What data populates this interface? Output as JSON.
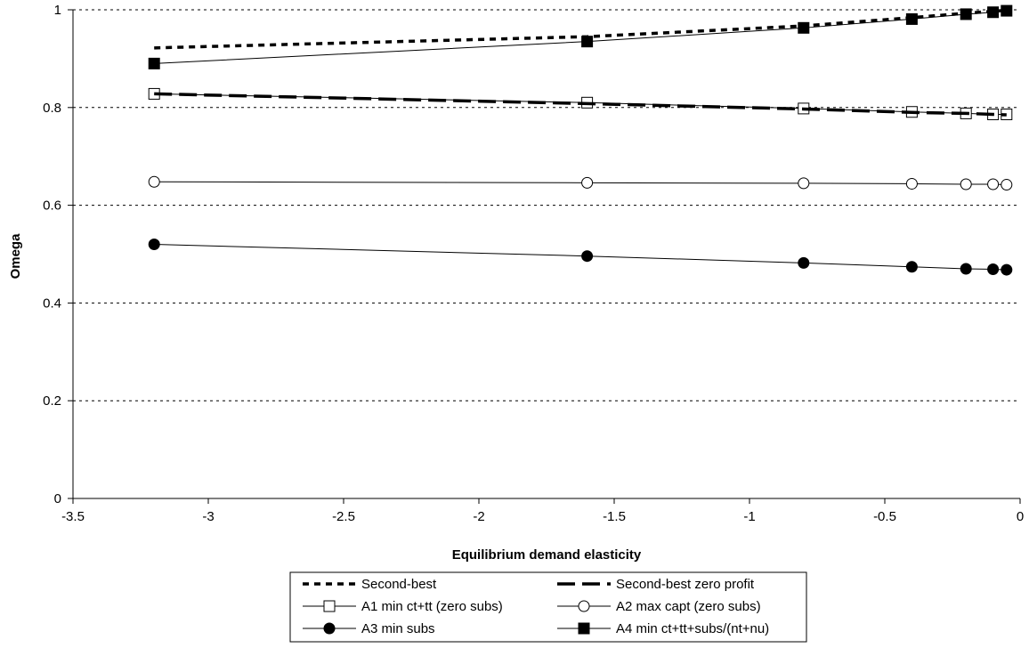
{
  "chart_data": {
    "type": "line",
    "title": "",
    "xlabel": "Equilibrium demand elasticity",
    "ylabel": "Omega",
    "xlim": [
      -3.5,
      0
    ],
    "ylim": [
      0,
      1
    ],
    "xticks": [
      -3.5,
      -3,
      -2.5,
      -2,
      -1.5,
      -1,
      -0.5,
      0
    ],
    "xtick_labels": [
      "-3.5",
      "-3",
      "-2.5",
      "-2",
      "-1.5",
      "-1",
      "-0.5",
      "0"
    ],
    "yticks": [
      0,
      0.2,
      0.4,
      0.6,
      0.8,
      1
    ],
    "ytick_labels": [
      "0",
      "0.2",
      "0.4",
      "0.6",
      "0.8",
      "1"
    ],
    "grid": "horizontal dashed",
    "legend_position": "bottom",
    "series": [
      {
        "name": "Second-best",
        "style": "short-dash",
        "marker": "none",
        "color": "#000000",
        "x": [
          -3.2,
          -1.6,
          -0.8,
          -0.4,
          -0.2,
          -0.1,
          -0.05
        ],
        "y": [
          0.922,
          0.945,
          0.967,
          0.984,
          0.993,
          0.997,
          0.999
        ]
      },
      {
        "name": "Second-best zero profit",
        "style": "long-dash",
        "marker": "none",
        "color": "#000000",
        "x": [
          -3.2,
          -1.6,
          -0.8,
          -0.4,
          -0.2,
          -0.1,
          -0.05
        ],
        "y": [
          0.828,
          0.808,
          0.797,
          0.79,
          0.788,
          0.786,
          0.785
        ]
      },
      {
        "name": "A1 min ct+tt (zero subs)",
        "style": "solid",
        "marker": "open-square",
        "color": "#000000",
        "x": [
          -3.2,
          -1.6,
          -0.8,
          -0.4,
          -0.2,
          -0.1,
          -0.05
        ],
        "y": [
          0.828,
          0.81,
          0.798,
          0.791,
          0.788,
          0.786,
          0.786
        ]
      },
      {
        "name": "A2 max capt (zero subs)",
        "style": "solid",
        "marker": "open-circle",
        "color": "#000000",
        "x": [
          -3.2,
          -1.6,
          -0.8,
          -0.4,
          -0.2,
          -0.1,
          -0.05
        ],
        "y": [
          0.648,
          0.646,
          0.645,
          0.644,
          0.643,
          0.643,
          0.642
        ]
      },
      {
        "name": "A3 min subs",
        "style": "solid",
        "marker": "filled-circle",
        "color": "#000000",
        "x": [
          -3.2,
          -1.6,
          -0.8,
          -0.4,
          -0.2,
          -0.1,
          -0.05
        ],
        "y": [
          0.52,
          0.496,
          0.482,
          0.474,
          0.47,
          0.469,
          0.468
        ]
      },
      {
        "name": "A4 min ct+tt+subs/(nt+nu)",
        "style": "solid",
        "marker": "filled-square",
        "color": "#000000",
        "x": [
          -3.2,
          -1.6,
          -0.8,
          -0.4,
          -0.2,
          -0.1,
          -0.05
        ],
        "y": [
          0.89,
          0.935,
          0.963,
          0.981,
          0.991,
          0.995,
          0.998
        ]
      }
    ]
  }
}
